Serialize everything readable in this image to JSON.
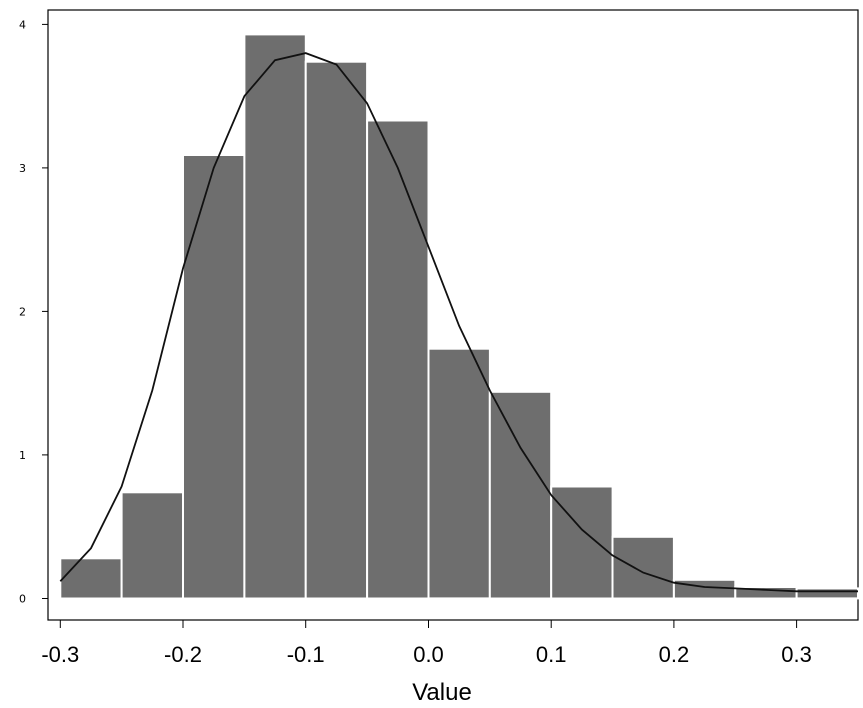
{
  "chart_data": {
    "type": "bar",
    "title": "",
    "xlabel": "Value",
    "ylabel": "",
    "xlim": [
      -0.31,
      0.35
    ],
    "ylim": [
      -0.15,
      4.1
    ],
    "xticks": [
      -0.3,
      -0.2,
      -0.1,
      0.0,
      0.1,
      0.2,
      0.3
    ],
    "xtick_labels": [
      "-0.3",
      "-0.2",
      "-0.1",
      "0.0",
      "0.1",
      "0.2",
      "0.3"
    ],
    "yticks": [
      0,
      1,
      2,
      3,
      4
    ],
    "ytick_labels": [
      "0",
      "1",
      "2",
      "3",
      "4"
    ],
    "grid": false,
    "bin_width": 0.05,
    "bins": [
      {
        "start": -0.3,
        "value": 0.28
      },
      {
        "start": -0.25,
        "value": 0.74
      },
      {
        "start": -0.2,
        "value": 3.09
      },
      {
        "start": -0.15,
        "value": 3.93
      },
      {
        "start": -0.1,
        "value": 3.74
      },
      {
        "start": -0.05,
        "value": 3.33
      },
      {
        "start": 0.0,
        "value": 1.74
      },
      {
        "start": 0.05,
        "value": 1.44
      },
      {
        "start": 0.1,
        "value": 0.78
      },
      {
        "start": 0.15,
        "value": 0.43
      },
      {
        "start": 0.2,
        "value": 0.13
      },
      {
        "start": 0.25,
        "value": 0.08
      },
      {
        "start": 0.3,
        "value": 0.07
      }
    ],
    "density_curve": {
      "x": [
        -0.3,
        -0.275,
        -0.25,
        -0.225,
        -0.2,
        -0.175,
        -0.15,
        -0.125,
        -0.1,
        -0.075,
        -0.05,
        -0.025,
        0.0,
        0.025,
        0.05,
        0.075,
        0.1,
        0.125,
        0.15,
        0.175,
        0.2,
        0.225,
        0.25,
        0.275,
        0.3,
        0.325,
        0.35
      ],
      "y": [
        0.12,
        0.35,
        0.78,
        1.45,
        2.3,
        3.0,
        3.5,
        3.75,
        3.8,
        3.72,
        3.45,
        3.0,
        2.45,
        1.9,
        1.45,
        1.05,
        0.72,
        0.48,
        0.3,
        0.18,
        0.11,
        0.08,
        0.07,
        0.06,
        0.05,
        0.05,
        0.05
      ]
    },
    "bar_color": "#6e6e6e",
    "curve_color": "#111111"
  }
}
